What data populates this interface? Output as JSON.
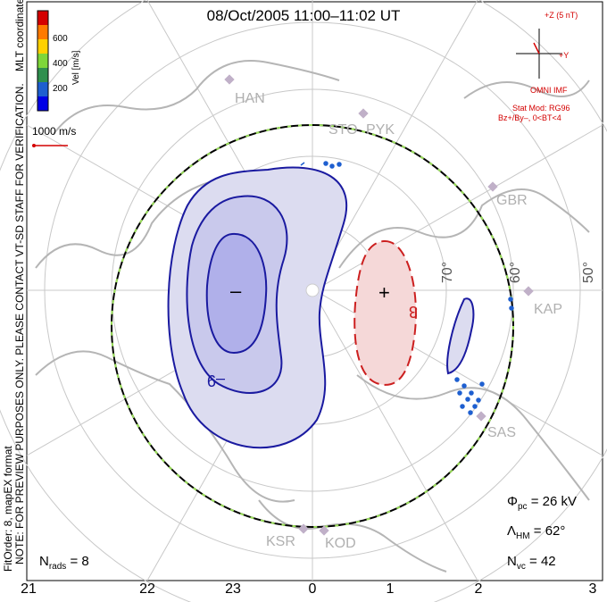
{
  "title": "08/Oct/2005 11:00–11:02 UT",
  "colorbar": {
    "ticks": [
      "600",
      "400",
      "200"
    ],
    "label": "Vel [m/s]",
    "colors": [
      "#d40000",
      "#ff7a00",
      "#ffd100",
      "#7ed63a",
      "#2f8f4e",
      "#1e5fd0",
      "#0000e6"
    ]
  },
  "coords_label": "MLT coordinates",
  "vector_scale": "1000 m/s",
  "watermark": "NOTE: FOR PREVIEW PURPOSES ONLY. PLEASE CONTACT VT-SD STAFF FOR VERIFICATION.",
  "fit_info": "FitOrder: 8, mapEX format",
  "imf": {
    "z_label": "+Z (5 nT)",
    "y_label": "+Y",
    "source": "OMNI IMF",
    "model": "Stat Mod: RG96",
    "condition": "Bz+/By–, 0<BT<4"
  },
  "stats": {
    "phi_sym": "Φ",
    "phi_sub": "pc",
    "phi_val": "= 26 kV",
    "lambda_sym": "Λ",
    "lambda_sub": "HM",
    "lambda_val": "= 62°",
    "nvc_sym": "N",
    "nvc_sub": "vc",
    "nvc_val": "= 42",
    "nrads_sym": "N",
    "nrads_sub": "rads",
    "nrads_val": "= 8"
  },
  "mlt_ticks": [
    "21",
    "22",
    "23",
    "0",
    "1",
    "2",
    "3"
  ],
  "latitudes": [
    "70°",
    "60°",
    "50°"
  ],
  "radars": [
    "HAN",
    "STO",
    "PYK",
    "GBR",
    "KAP",
    "SAS",
    "KSR",
    "KOD"
  ],
  "contours": {
    "neg_label": "–",
    "pos_label": "+",
    "neg_value": "–9",
    "pos_value": "3"
  }
}
